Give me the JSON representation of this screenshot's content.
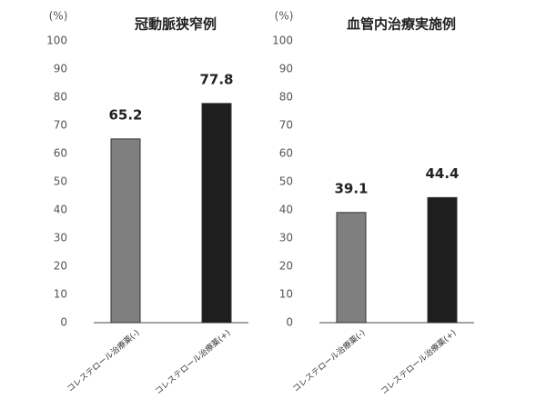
{
  "chart_data": [
    {
      "type": "bar",
      "title": "冠動脈狭窄例",
      "y_label": "(%)",
      "categories": [
        "コレステロール治療薬(-)",
        "コレステロール治療薬(+)"
      ],
      "values": [
        65.2,
        77.8
      ],
      "colors": [
        "#7f7f7f",
        "#1e1e1e"
      ],
      "ylim": [
        0,
        100
      ],
      "yticks": [
        0,
        10,
        20,
        30,
        40,
        50,
        60,
        70,
        80,
        90,
        100
      ]
    },
    {
      "type": "bar",
      "title": "血管内治療実施例",
      "y_label": "(%)",
      "categories": [
        "コレステロール治療薬(-)",
        "コレステロール治療薬(+)"
      ],
      "values": [
        39.1,
        44.4
      ],
      "colors": [
        "#7f7f7f",
        "#1e1e1e"
      ],
      "ylim": [
        0,
        100
      ],
      "yticks": [
        0,
        10,
        20,
        30,
        40,
        50,
        60,
        70,
        80,
        90,
        100
      ]
    }
  ]
}
